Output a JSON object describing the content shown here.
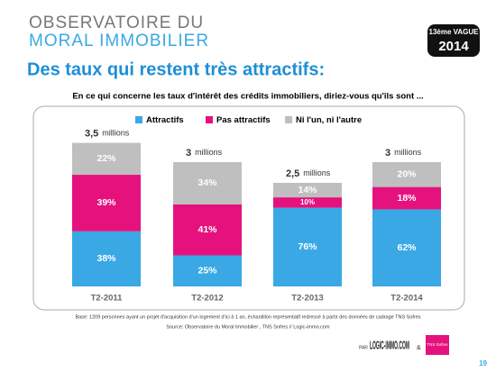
{
  "header": {
    "line1": "OBSERVATOIRE DU",
    "line2": "MORAL IMMOBILIER",
    "badge_top": "13ème VAGUE",
    "badge_year": "2014"
  },
  "chart_data": {
    "type": "stacked-bar",
    "title": "Des taux qui restent très attractifs:",
    "subtitle": "En ce qui concerne les taux d'intérêt des crédits immobiliers, diriez-vous qu'ils sont ...",
    "categories": [
      "T2-2011",
      "T2-2012",
      "T2-2013",
      "T2-2014"
    ],
    "series": [
      {
        "name": "Attractifs",
        "color": "#3aa8e4",
        "values": [
          38,
          25,
          76,
          62
        ],
        "value_labels": [
          "38%",
          "25%",
          "76%",
          "62%"
        ]
      },
      {
        "name": "Pas attractifs",
        "color": "#e5127d",
        "values": [
          39,
          41,
          10,
          18
        ],
        "value_labels": [
          "39%",
          "41%",
          "10%",
          "18%"
        ]
      },
      {
        "name": "Ni l'un, ni l'autre",
        "color": "#bfbfbf",
        "values": [
          22,
          34,
          14,
          20
        ],
        "value_labels": [
          "22%",
          "34%",
          "14%",
          "20%"
        ]
      }
    ],
    "totals": {
      "values": [
        3.5,
        3,
        2.5,
        3
      ],
      "value_labels": [
        "3,5",
        "3",
        "2,5",
        "3"
      ],
      "unit": "millions"
    }
  },
  "footer": {
    "base": "Base: 1209 personnes ayant un projet d'acquisition d'un logement d'ici à 1 an, échantillon représentatif redressé à partir des données de cadrage TNS Sofres",
    "source": "Source: Observatoire du Moral Immobilier , TNS Sofres // Logic-immo.com",
    "par": "PAR",
    "logic": "LOGIC-IMMO.COM",
    "amp": "&",
    "tns": "TNS Sofres",
    "page": "19"
  }
}
